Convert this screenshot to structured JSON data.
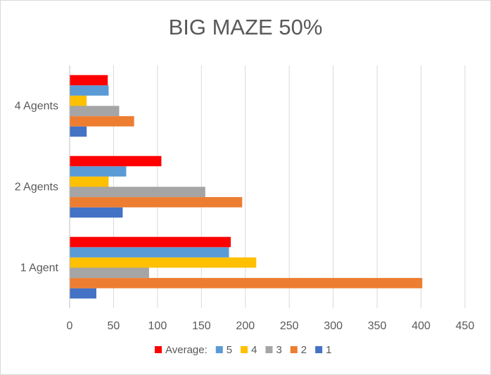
{
  "chart_data": {
    "type": "bar",
    "orientation": "horizontal",
    "title": "BIG MAZE 50%",
    "categories": [
      "1 Agent",
      "2 Agents",
      "4 Agents"
    ],
    "xlim": [
      0,
      450
    ],
    "xticks": [
      0,
      50,
      100,
      150,
      200,
      250,
      300,
      350,
      400,
      450
    ],
    "grid": true,
    "legend_position": "bottom",
    "series": [
      {
        "name": "1",
        "color": "#4472c4",
        "values": [
          30,
          60,
          19
        ]
      },
      {
        "name": "2",
        "color": "#ed7d31",
        "values": [
          401,
          196,
          73
        ]
      },
      {
        "name": "3",
        "color": "#a5a5a5",
        "values": [
          90,
          154,
          56
        ]
      },
      {
        "name": "4",
        "color": "#ffc000",
        "values": [
          212,
          44,
          19
        ]
      },
      {
        "name": "5",
        "color": "#5b9bd5",
        "values": [
          181,
          64,
          44
        ]
      },
      {
        "name": "Average:",
        "color": "#ff0000",
        "values": [
          183,
          104,
          43
        ]
      }
    ]
  }
}
